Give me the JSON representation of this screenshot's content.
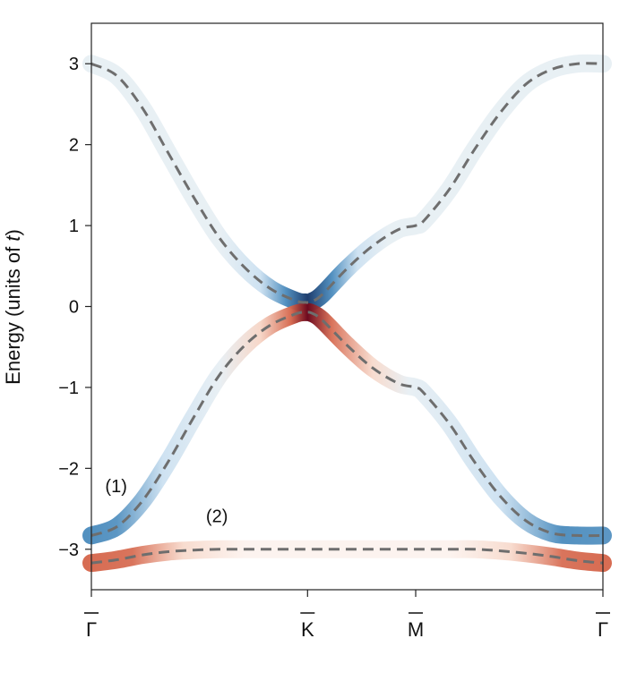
{
  "chart_data": {
    "type": "line",
    "ylabel_prefix": "Energy (units of ",
    "ylabel_var": "t",
    "ylabel_suffix": ")",
    "xlabel": "",
    "ylim": [
      -3.5,
      3.5
    ],
    "yticks": [
      {
        "value": 3,
        "label": "3"
      },
      {
        "value": 2,
        "label": "2"
      },
      {
        "value": 1,
        "label": "1"
      },
      {
        "value": 0,
        "label": "0"
      },
      {
        "value": -1,
        "label": "−1"
      },
      {
        "value": -2,
        "label": "−2"
      },
      {
        "value": -3,
        "label": "−3"
      }
    ],
    "xlim": [
      0,
      1
    ],
    "xticks": [
      {
        "value": 0,
        "label": "Γ"
      },
      {
        "value": 0.4226,
        "label": "K"
      },
      {
        "value": 0.634,
        "label": "M"
      },
      {
        "value": 1,
        "label": "Γ"
      }
    ],
    "grid": false,
    "annotations": [
      {
        "text": "(1)",
        "x": 0.013,
        "y": -2.33
      },
      {
        "text": "(2)",
        "x": 0.21,
        "y": -2.7
      }
    ],
    "series": [
      {
        "band": "1",
        "x": [
          0,
          0.05,
          0.1,
          0.15,
          0.2,
          0.25,
          0.3,
          0.35,
          0.4,
          0.42,
          0.4226,
          0.43,
          0.45,
          0.5,
          0.55,
          0.6,
          0.634,
          0.65,
          0.7,
          0.75,
          0.8,
          0.85,
          0.9,
          0.95,
          1.0
        ],
        "values": [
          3.0,
          2.85,
          2.45,
          1.9,
          1.35,
          0.85,
          0.48,
          0.22,
          0.07,
          0.05,
          0.05,
          0.06,
          0.14,
          0.47,
          0.75,
          0.95,
          1.0,
          1.06,
          1.45,
          1.95,
          2.4,
          2.75,
          2.93,
          3.0,
          3.0
        ]
      },
      {
        "band": "2",
        "x": [
          0,
          0.05,
          0.1,
          0.15,
          0.2,
          0.25,
          0.3,
          0.35,
          0.4,
          0.42,
          0.4226,
          0.43,
          0.45,
          0.5,
          0.55,
          0.6,
          0.634,
          0.65,
          0.7,
          0.75,
          0.8,
          0.85,
          0.9,
          0.95,
          1.0
        ],
        "values": [
          -2.83,
          -2.72,
          -2.4,
          -1.92,
          -1.37,
          -0.85,
          -0.48,
          -0.23,
          -0.09,
          -0.07,
          -0.07,
          -0.08,
          -0.16,
          -0.48,
          -0.76,
          -0.95,
          -1.0,
          -1.07,
          -1.45,
          -1.93,
          -2.35,
          -2.65,
          -2.8,
          -2.83,
          -2.83
        ]
      },
      {
        "band": "3",
        "x": [
          0,
          0.05,
          0.1,
          0.15,
          0.2,
          0.25,
          0.3,
          0.35,
          0.4,
          0.4226,
          0.45,
          0.5,
          0.55,
          0.6,
          0.634,
          0.65,
          0.7,
          0.75,
          0.8,
          0.85,
          0.9,
          0.95,
          1.0
        ],
        "values": [
          -3.17,
          -3.13,
          -3.07,
          -3.03,
          -3.01,
          -3.0,
          -3.0,
          -3.0,
          -3.0,
          -3.0,
          -3.0,
          -3.0,
          -3.0,
          -3.0,
          -3.0,
          -3.0,
          -3.0,
          -3.0,
          -3.02,
          -3.05,
          -3.09,
          -3.14,
          -3.17
        ]
      }
    ],
    "colors": {
      "dashed_line": "#6e6e6e",
      "blue_strong": "#1f3e6e",
      "blue_mid": "#4a8bbd",
      "blue_light": "#c9dff0",
      "red_strong": "#6d0a1f",
      "red_mid": "#d5654a",
      "red_light": "#f6d3c3",
      "faint": "#e6eef3"
    }
  }
}
